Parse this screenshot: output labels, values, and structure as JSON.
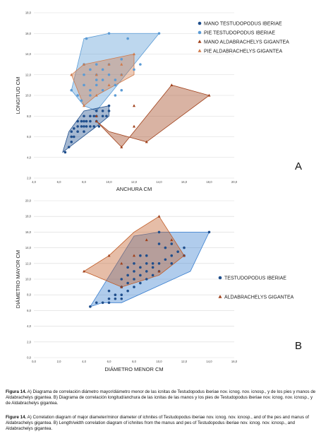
{
  "colors": {
    "mano_testudo": "#1f4e8c",
    "pie_testudo": "#5b9bd5",
    "mano_aldabra": "#a0401a",
    "pie_aldabra": "#d07a4a",
    "hull_testudo": "#3a7fcf",
    "hull_aldabra": "#c05a24",
    "grid": "#d9d9d9"
  },
  "chart_data": [
    {
      "type": "scatter",
      "panel_letter": "A",
      "xlabel": "ANCHURA CM",
      "ylabel": "LONGITUD CM",
      "xlim": [
        4,
        20
      ],
      "ylim": [
        2,
        18
      ],
      "xticks": [
        "4,0",
        "6,0",
        "8,0",
        "10,0",
        "12,0",
        "14,0",
        "16,0",
        "18,0",
        "20,0"
      ],
      "yticks": [
        "2,0",
        "4,0",
        "6,0",
        "8,0",
        "10,0",
        "12,0",
        "14,0",
        "16,0",
        "18,0"
      ],
      "legend_position": "top-right",
      "grid": true,
      "series": [
        {
          "name": "MANO TESTUDOPODUS IBERIAE",
          "marker": "circle",
          "color_key": "mano_testudo",
          "x": [
            6.5,
            6.8,
            7,
            7,
            7.2,
            7.2,
            7.5,
            7.5,
            7.5,
            7.8,
            8,
            8,
            8,
            8,
            8.2,
            8.5,
            8.5,
            8.5,
            8.8,
            9,
            9,
            9,
            9.2,
            9.5,
            9.5,
            10,
            10,
            7,
            7.8,
            8.2,
            8.8,
            9.8
          ],
          "y": [
            4.5,
            5,
            5.5,
            6.5,
            6,
            6.8,
            6.5,
            7,
            7.5,
            7.5,
            6.5,
            7,
            7.5,
            8,
            7,
            7,
            7.5,
            8,
            8,
            7.5,
            8,
            8.5,
            7,
            8,
            8.5,
            8.5,
            9,
            6,
            7,
            7.5,
            7,
            8
          ]
        },
        {
          "name": "PIE TESTUDOPODUS IBERIAE",
          "marker": "circle",
          "color_key": "pie_testudo",
          "x": [
            7,
            7.5,
            8,
            8,
            8.2,
            8.5,
            8.5,
            9,
            9,
            9,
            9.5,
            9.5,
            10,
            10,
            10,
            10.5,
            11,
            11,
            11.5,
            12,
            12.5,
            14,
            8,
            8.5,
            9.5,
            10.5,
            11,
            7.8,
            9,
            10.5
          ],
          "y": [
            10.5,
            10,
            11,
            12,
            15.5,
            10.5,
            12.5,
            11,
            12,
            13,
            11.5,
            12.5,
            12,
            13,
            16,
            11,
            12,
            13.5,
            15.5,
            12.5,
            13,
            16,
            13,
            10,
            10.5,
            11.5,
            10.5,
            9.5,
            11.5,
            10
          ]
        },
        {
          "name": "MANO ALDABRACHELYS GIGANTEA",
          "marker": "triangle",
          "color_key": "mano_aldabra",
          "x": [
            9,
            11,
            12,
            13,
            15,
            18,
            9,
            12
          ],
          "y": [
            7.5,
            5,
            9,
            5.5,
            11,
            10,
            8,
            7
          ]
        },
        {
          "name": "PIE ALDABRACHELYS GIGANTEA",
          "marker": "triangle",
          "color_key": "pie_aldabra",
          "x": [
            7,
            8,
            9,
            10,
            11,
            12,
            8,
            9,
            10,
            11
          ],
          "y": [
            12,
            9,
            12,
            11,
            13,
            14,
            13,
            10,
            13,
            12
          ]
        }
      ],
      "hulls": [
        {
          "color_key": "pie_testudo",
          "x": [
            7,
            8,
            10,
            14,
            12,
            9,
            8
          ],
          "y": [
            10.5,
            15.5,
            16,
            16,
            13,
            8.5,
            9
          ]
        },
        {
          "color_key": "mano_testudo",
          "x": [
            6.3,
            6.8,
            8,
            10,
            10,
            9
          ],
          "y": [
            4.5,
            6.5,
            8.5,
            9,
            8,
            7
          ]
        },
        {
          "color_key": "pie_aldabra",
          "x": [
            7,
            8,
            12,
            12,
            9,
            8
          ],
          "y": [
            12,
            13,
            14,
            12,
            10,
            9
          ]
        },
        {
          "color_key": "mano_aldabra",
          "x": [
            9,
            11,
            15,
            18,
            13,
            10
          ],
          "y": [
            7.5,
            5,
            11,
            10,
            5.5,
            6.5
          ]
        }
      ]
    },
    {
      "type": "scatter",
      "panel_letter": "B",
      "xlabel": "DIÁMETRO MENOR CM",
      "ylabel": "DIÁMETRO MAYOR CM",
      "xlim": [
        0,
        16
      ],
      "ylim": [
        0,
        20
      ],
      "xticks": [
        "0,0",
        "2,0",
        "4,0",
        "6,0",
        "8,0",
        "10,0",
        "12,0",
        "14,0",
        "16,0"
      ],
      "yticks": [
        "0,0",
        "2,0",
        "4,0",
        "6,0",
        "8,0",
        "10,0",
        "12,0",
        "14,0",
        "16,0",
        "18,0",
        "20,0"
      ],
      "legend_position": "right",
      "grid": true,
      "series": [
        {
          "name": "TESTUDOPODUS IBERIAE",
          "marker": "circle",
          "color_key": "mano_testudo",
          "x": [
            4.5,
            5,
            5.5,
            6,
            6,
            6.5,
            6.5,
            7,
            7,
            7,
            7.5,
            7.5,
            7.5,
            8,
            8,
            8,
            8,
            8.5,
            8.5,
            8.5,
            9,
            9,
            9,
            9,
            9.5,
            9.5,
            10,
            10,
            10,
            10.5,
            10.5,
            11,
            11,
            11.5,
            12,
            12,
            14,
            6,
            7,
            7.5,
            8.5,
            9.5,
            10,
            11
          ],
          "y": [
            6.5,
            7,
            7,
            7,
            7.5,
            7.5,
            8,
            8,
            9,
            10,
            8.5,
            9.5,
            10.5,
            9,
            10,
            11,
            12,
            9.5,
            10.5,
            11.5,
            10,
            11,
            12,
            13,
            10.5,
            12,
            11,
            12,
            16,
            12.5,
            14,
            13,
            14.5,
            13.5,
            14,
            13,
            16,
            8.5,
            7.5,
            11.5,
            13,
            11.5,
            14.5,
            12
          ]
        },
        {
          "name": "ALDABRACHELYS GIGANTEA",
          "marker": "triangle",
          "color_key": "mano_aldabra",
          "x": [
            4,
            6,
            7,
            8,
            9,
            10,
            11,
            12,
            7,
            10
          ],
          "y": [
            11,
            13,
            12,
            13,
            15,
            18,
            15,
            13,
            9,
            11
          ]
        }
      ],
      "hulls": [
        {
          "color_key": "hull_testudo",
          "x": [
            4.5,
            5.5,
            7,
            12.5,
            14,
            10,
            8
          ],
          "y": [
            6.5,
            7,
            7,
            11,
            16,
            16,
            15.5
          ]
        },
        {
          "color_key": "hull_aldabra",
          "x": [
            4,
            6,
            8,
            10,
            12,
            10,
            7
          ],
          "y": [
            11,
            13,
            16,
            18,
            13,
            10.5,
            9
          ]
        }
      ]
    }
  ],
  "caption": {
    "es_label": "Figura 14.",
    "es_text": "A) Diagrama de correlación diámetro mayor/diámetro menor de las icnitas de Testudopodus iberiae nov. icnog. nov. icnosp., y de los pies y manos de Aldabrachelys gigantea. B) Diagrama de correlación longitud/anchura de las icnitas de las manos y los pies de Testudopodus iberiae nov. icnog. nov. icnosp., y de Aldabrachelys gigantea.",
    "en_label": "Figure 14.",
    "en_text": "A) Correlation diagram of major diameter/minor diameter of ichnites of Testudopodus iberiae nov. icnog. nov. icnosp., and of the pes and manus of Aldabrachelys gigantea. B) Length/width correlation diagram of ichnites from the manus and pes of Testudopodus iberiae nov. icnog. nov. icnosp., and Aldabrachelys gigantea."
  }
}
